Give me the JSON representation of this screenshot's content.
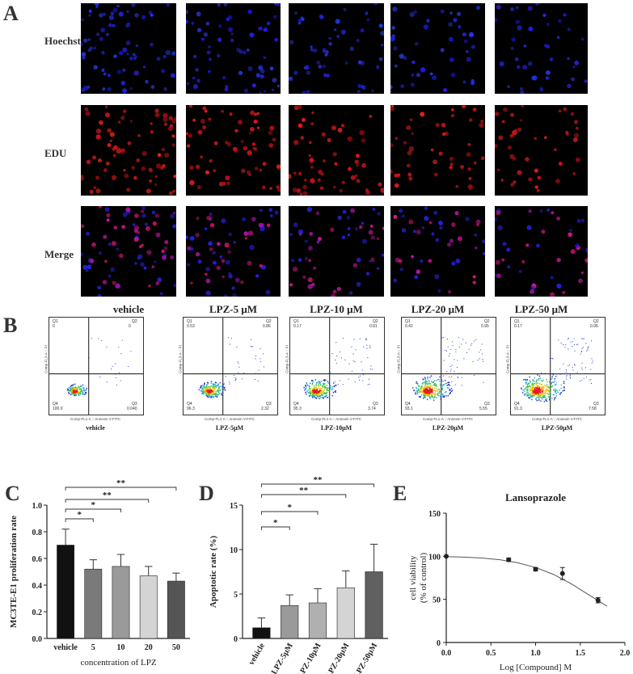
{
  "panelA": {
    "letter": "A",
    "rows": [
      "Hoechst",
      "EDU",
      "Merge"
    ],
    "columns": [
      "vehicle",
      "LPZ-5 μM",
      "LPZ-10 μM",
      "LPZ-20 μM",
      "LPZ-50 μM"
    ],
    "cell_density": [
      1.0,
      0.8,
      0.7,
      0.55,
      0.5
    ]
  },
  "panelB": {
    "letter": "B",
    "y_axis_label": "Comp-FL3-A :: PI",
    "x_axis_label": "Comp-FL1-A :: Annexin V-FITC",
    "plots": [
      {
        "title": "vehicle",
        "q1_label": "Q1",
        "q1": "0",
        "q2_label": "Q2",
        "q2": "0",
        "q3_label": "Q3",
        "q3": "0.040",
        "q4_label": "Q4",
        "q4": "100.0"
      },
      {
        "title": "LPZ-5μM",
        "q1_label": "Q1",
        "q1": "0.53",
        "q2_label": "Q2",
        "q2": "0.86",
        "q3_label": "Q3",
        "q3": "2.32",
        "q4_label": "Q4",
        "q4": "96.3"
      },
      {
        "title": "LPZ-10μM",
        "q1_label": "Q1",
        "q1": "0.17",
        "q2_label": "Q2",
        "q2": "0.81",
        "q3_label": "Q3",
        "q3": "3.74",
        "q4_label": "Q4",
        "q4": "95.3"
      },
      {
        "title": "LPZ-20μM",
        "q1_label": "Q1",
        "q1": "0.42",
        "q2_label": "Q2",
        "q2": "0.95",
        "q3_label": "Q3",
        "q3": "5.55",
        "q4_label": "Q4",
        "q4": "93.1"
      },
      {
        "title": "LPZ-50μM",
        "q1_label": "Q1",
        "q1": "0.17",
        "q2_label": "Q2",
        "q2": "0.96",
        "q3_label": "Q3",
        "q3": "7.58",
        "q4_label": "Q4",
        "q4": "91.3"
      }
    ]
  },
  "panelC": {
    "letter": "C"
  },
  "panelD": {
    "letter": "D"
  },
  "panelE": {
    "letter": "E"
  },
  "chart_data": [
    {
      "type": "bar",
      "title": "",
      "ylabel": "MC3TE-E1 proliferation rate",
      "xlabel": "concentration of LPZ",
      "categories": [
        "vehicle",
        "5",
        "10",
        "20",
        "50"
      ],
      "values": [
        0.7,
        0.52,
        0.54,
        0.47,
        0.43
      ],
      "errors": [
        0.12,
        0.07,
        0.09,
        0.07,
        0.06
      ],
      "colors": [
        "#111111",
        "#7a7a7a",
        "#9a9a9a",
        "#d4d4d4",
        "#555555"
      ],
      "ylim": [
        0.0,
        1.0
      ],
      "yticks": [
        "0.0",
        "0.2",
        "0.4",
        "0.6",
        "0.8",
        "1.0"
      ],
      "significance": [
        {
          "from": 0,
          "to": 1,
          "label": "*"
        },
        {
          "from": 0,
          "to": 2,
          "label": "*"
        },
        {
          "from": 0,
          "to": 3,
          "label": "**"
        },
        {
          "from": 0,
          "to": 4,
          "label": "**"
        }
      ]
    },
    {
      "type": "bar",
      "title": "",
      "ylabel": "Apoptotic rate (%)",
      "xlabel": "",
      "categories": [
        "vehicle",
        "LPZ-5μM",
        "LPZ-10μM",
        "LPZ-20μM",
        "LPZ-50μM"
      ],
      "values": [
        1.2,
        3.7,
        4.0,
        5.7,
        7.5
      ],
      "errors": [
        1.1,
        1.2,
        1.6,
        1.9,
        3.1
      ],
      "colors": [
        "#111111",
        "#9a9a9a",
        "#b0b0b0",
        "#d4d4d4",
        "#606060"
      ],
      "ylim": [
        0,
        15
      ],
      "yticks": [
        "0",
        "5",
        "10",
        "15"
      ],
      "significance": [
        {
          "from": 0,
          "to": 1,
          "label": "*"
        },
        {
          "from": 0,
          "to": 2,
          "label": "*"
        },
        {
          "from": 0,
          "to": 3,
          "label": "**"
        },
        {
          "from": 0,
          "to": 4,
          "label": "**"
        }
      ]
    },
    {
      "type": "scatter",
      "title": "Lansoprazole",
      "xlabel": "Log [Compound] M",
      "ylabel": "cell viability",
      "ylabel2": "(% of control)",
      "x": [
        0.0,
        0.699,
        1.0,
        1.301,
        1.699
      ],
      "y": [
        100,
        96,
        85,
        80,
        49
      ],
      "errors": [
        0,
        2,
        2,
        7,
        3
      ],
      "fit_x": [
        0.0,
        0.2,
        0.4,
        0.6,
        0.8,
        1.0,
        1.2,
        1.4,
        1.6,
        1.8
      ],
      "fit_y": [
        99.6,
        99.0,
        98.0,
        96.0,
        92.5,
        87.0,
        79.0,
        68.0,
        55.0,
        42.0
      ],
      "xlim": [
        0.0,
        2.0
      ],
      "ylim": [
        0,
        150
      ],
      "xticks": [
        "0.0",
        "0.5",
        "1.0",
        "1.5",
        "2.0"
      ],
      "yticks": [
        "0",
        "50",
        "100",
        "150"
      ]
    }
  ]
}
